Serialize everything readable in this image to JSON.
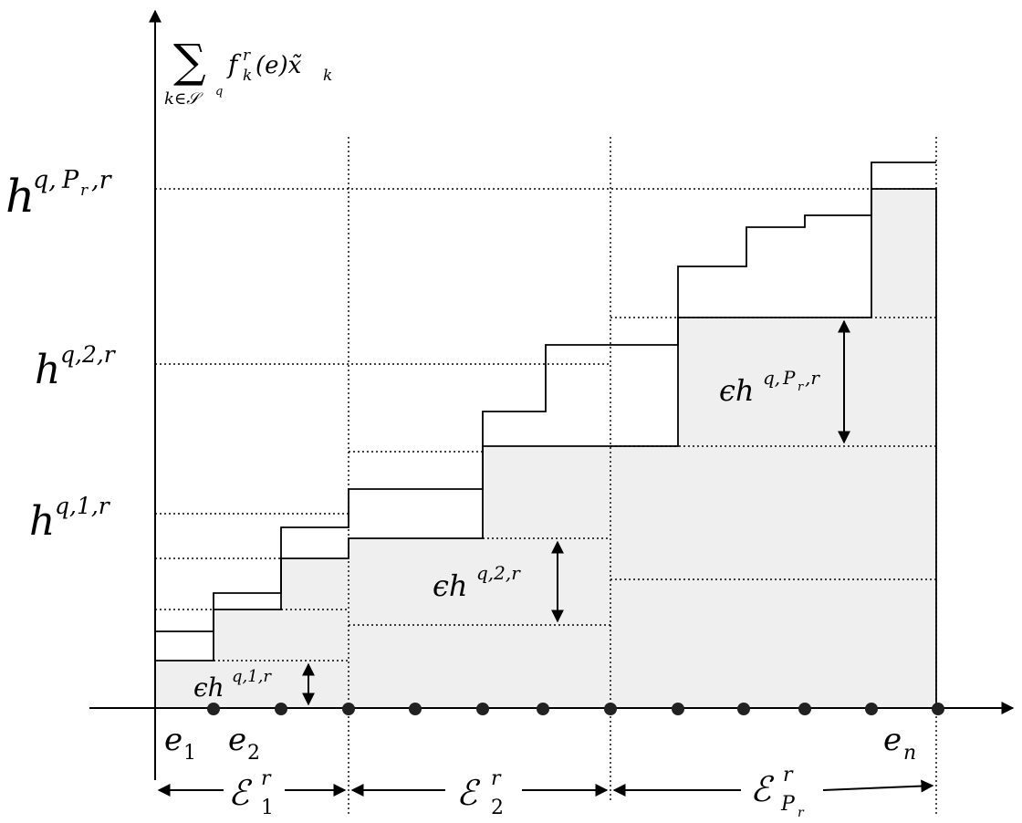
{
  "y_axis_label": {
    "sum": "∑",
    "sum_index": "k∈𝒮",
    "sum_index_sup": "q",
    "expr": "f",
    "expr_sup": "r",
    "expr_sub": "k",
    "expr_rest": "(e)x̃",
    "expr_rest_sub": "k"
  },
  "y_ticks": {
    "h1": {
      "base": "h",
      "sup": "q,1,r"
    },
    "h2": {
      "base": "h",
      "sup": "q,2,r"
    },
    "hP": {
      "base": "h",
      "sup": "q,",
      "sup_P": "P",
      "sup_Psub": "r",
      "sup_end": ",r"
    }
  },
  "annotations": {
    "eps1": {
      "pre": "ϵh",
      "sup": "q,1,r"
    },
    "eps2": {
      "pre": "ϵh",
      "sup": "q,2,r"
    },
    "epsP": {
      "pre": "ϵh",
      "sup": "q,",
      "sup_P": "P",
      "sup_Psub": "r",
      "sup_end": ",r"
    }
  },
  "x_labels": {
    "e1": {
      "base": "e",
      "sub": "1"
    },
    "e2": {
      "base": "e",
      "sub": "2"
    },
    "en": {
      "base": "e",
      "sub": "n"
    }
  },
  "groups": {
    "g1": {
      "base": "ℰ",
      "sup": "r",
      "sub": "1"
    },
    "g2": {
      "base": "ℰ",
      "sup": "r",
      "sub": "2"
    },
    "gP": {
      "base": "ℰ",
      "sup": "r",
      "sub": "P",
      "subsub": "r"
    }
  },
  "colors": {
    "shade": "#efefef",
    "line": "#000000"
  }
}
